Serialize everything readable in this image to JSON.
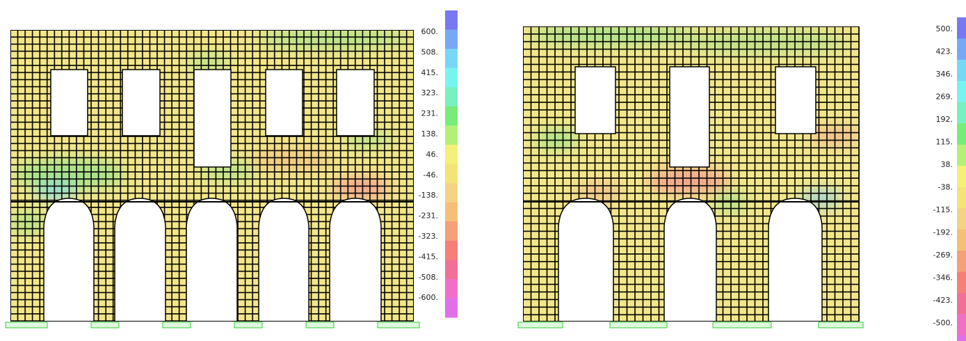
{
  "panels": [
    {
      "legend": [
        "600.",
        "508.",
        "415.",
        "323.",
        "231.",
        "138.",
        "46.",
        "-46.",
        "-138.",
        "-231.",
        "-323.",
        "-415.",
        "-508.",
        "-600."
      ]
    },
    {
      "legend": [
        "500.",
        "423.",
        "346.",
        "269.",
        "192.",
        "115.",
        "38.",
        "-38.",
        "-115.",
        "-192.",
        "-269.",
        "-346.",
        "-423.",
        "-500."
      ]
    }
  ]
}
